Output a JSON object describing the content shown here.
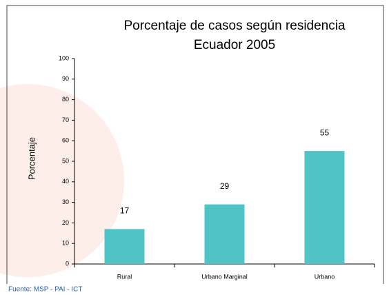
{
  "chart_data": {
    "type": "bar",
    "title": "Porcentaje de casos según residencia",
    "subtitle": "Ecuador 2005",
    "y_label": "Porcentaje",
    "source": "Fuente: MSP - PAI - ICT",
    "categories": [
      "Rural",
      "Urbano  Marginal",
      "Urbano"
    ],
    "values": [
      17,
      29,
      55
    ],
    "color": "#4fc3c5",
    "ylim": [
      0,
      100
    ],
    "yticks": [
      0,
      10,
      20,
      30,
      40,
      50,
      60,
      70,
      80,
      90,
      100
    ],
    "grid": false
  }
}
